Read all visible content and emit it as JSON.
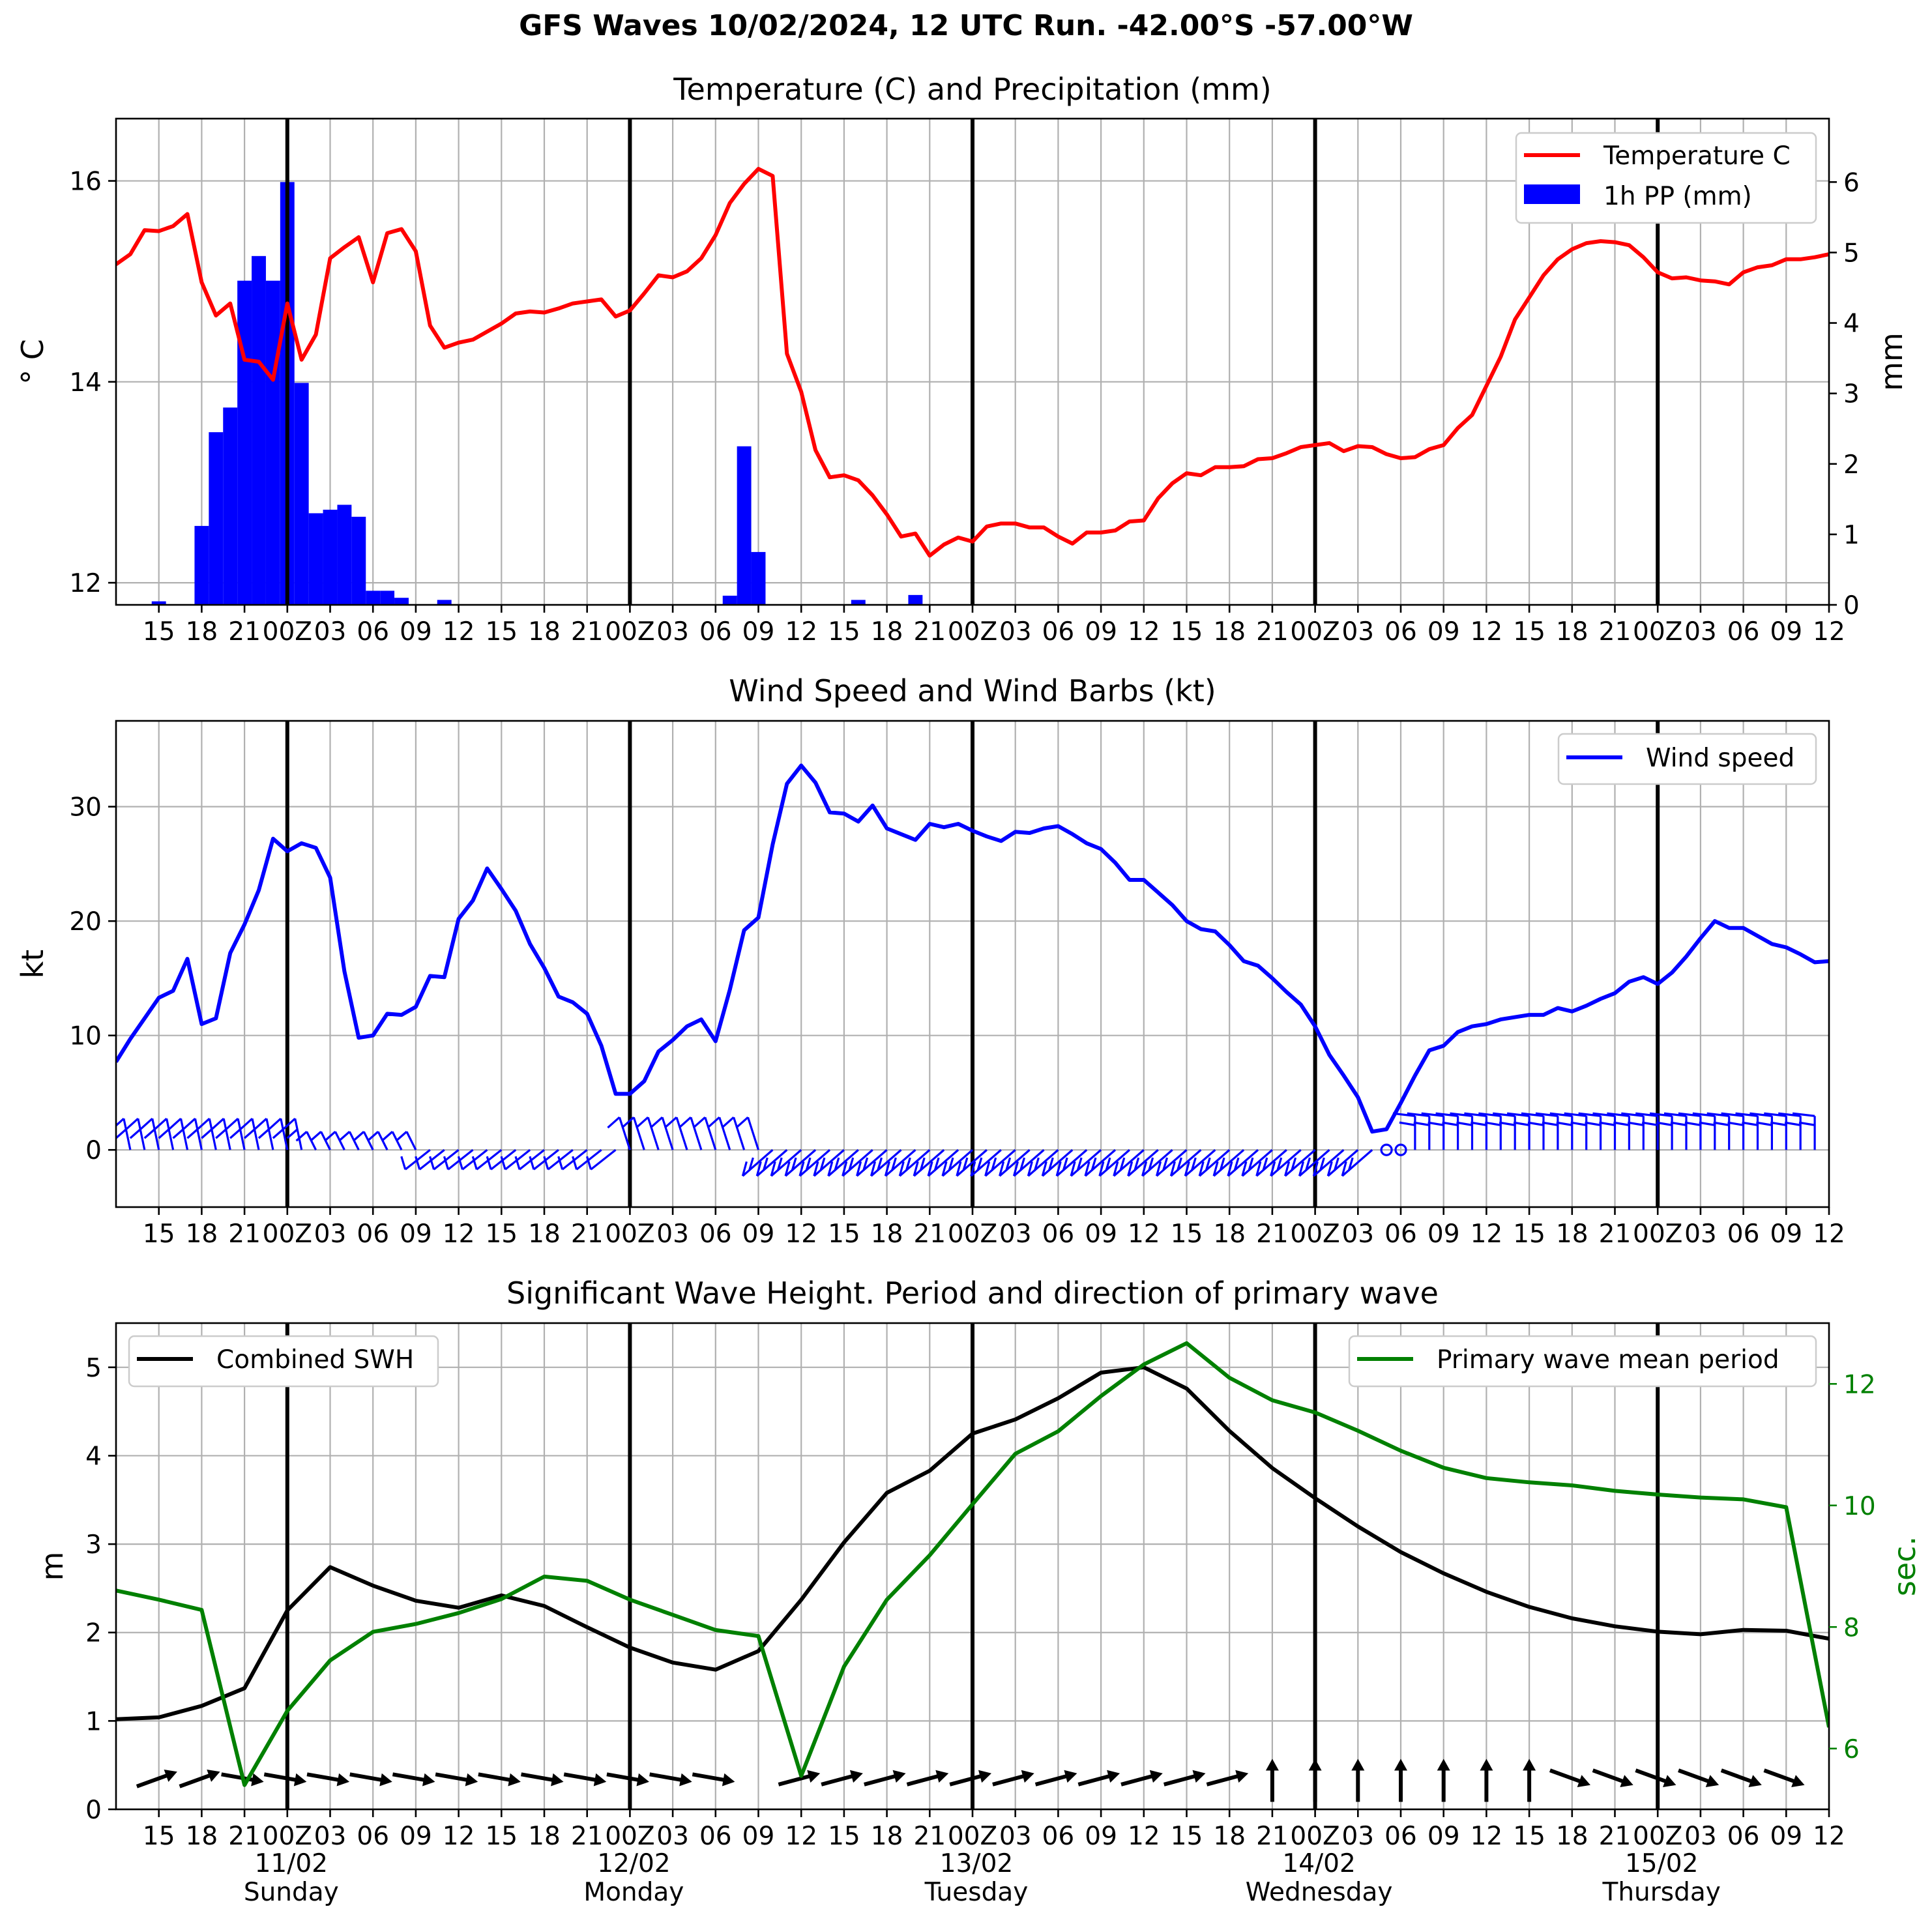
{
  "title": "GFS Waves 10/02/2024, 12 UTC Run. -42.00°S -57.00°W",
  "hour_tick_labels": [
    "15",
    "18",
    "21",
    "00Z",
    "03",
    "06",
    "09",
    "12",
    "15",
    "18",
    "21",
    "00Z",
    "03",
    "06",
    "09",
    "12",
    "15",
    "18",
    "21",
    "00Z",
    "03",
    "06",
    "09",
    "12",
    "15",
    "18",
    "21",
    "00Z",
    "03",
    "06",
    "09",
    "12",
    "15",
    "18",
    "21",
    "00Z",
    "03",
    "06",
    "09",
    "12"
  ],
  "day_labels": [
    {
      "date": "11/02",
      "day": "Sunday"
    },
    {
      "date": "12/02",
      "day": "Monday"
    },
    {
      "date": "13/02",
      "day": "Tuesday"
    },
    {
      "date": "14/02",
      "day": "Wednesday"
    },
    {
      "date": "15/02",
      "day": "Thursday"
    }
  ],
  "colors": {
    "temperature": "#ff0000",
    "precipitation": "#0000ff",
    "wind": "#0000ff",
    "swh": "#000000",
    "period": "#008000",
    "grid": "#b0b0b0"
  },
  "chart_data": [
    {
      "type": "line",
      "title": "Temperature (C) and Precipitation (mm)",
      "xlabel": "",
      "ylabel": "° C",
      "ylabel_right": "mm",
      "x_unit": "hours after 10/02/2024 12 UTC",
      "xlim": [
        0,
        120
      ],
      "ylim": [
        11.78,
        16.62
      ],
      "ylim_right": [
        0,
        6.9
      ],
      "yticks": [
        12,
        14,
        16
      ],
      "yticks_right": [
        0,
        1,
        2,
        3,
        4,
        5,
        6
      ],
      "legend_position": "top-right",
      "series": [
        {
          "name": "Temperature C",
          "axis": "left",
          "x": [
            0,
            1,
            2,
            3,
            4,
            5,
            6,
            7,
            8,
            9,
            10,
            11,
            12,
            13,
            14,
            15,
            16,
            17,
            18,
            19,
            20,
            21,
            22,
            23,
            24,
            25,
            26,
            27,
            28,
            29,
            30,
            31,
            32,
            33,
            34,
            35,
            36,
            37,
            38,
            39,
            40,
            41,
            42,
            43,
            44,
            45,
            46,
            47,
            48,
            49,
            50,
            51,
            52,
            53,
            54,
            55,
            56,
            57,
            58,
            59,
            60,
            61,
            62,
            63,
            64,
            65,
            66,
            67,
            68,
            69,
            70,
            71,
            72,
            73,
            74,
            75,
            76,
            77,
            78,
            79,
            80,
            81,
            82,
            83,
            84,
            85,
            86,
            87,
            88,
            89,
            90,
            91,
            92,
            93,
            94,
            95,
            96,
            97,
            98,
            99,
            100,
            101,
            102,
            103,
            104,
            105,
            106,
            107,
            108,
            109,
            110,
            111,
            112,
            113,
            114,
            115,
            116,
            117,
            118,
            119,
            120
          ],
          "values": [
            15.17,
            15.27,
            15.51,
            15.5,
            15.55,
            15.67,
            14.99,
            14.66,
            14.78,
            14.22,
            14.2,
            14.02,
            14.78,
            14.22,
            14.47,
            15.23,
            15.34,
            15.44,
            14.99,
            15.48,
            15.52,
            15.3,
            14.56,
            14.34,
            14.39,
            14.42,
            14.5,
            14.58,
            14.68,
            14.7,
            14.69,
            14.73,
            14.78,
            14.8,
            14.82,
            14.65,
            14.71,
            14.88,
            15.06,
            15.04,
            15.1,
            15.23,
            15.46,
            15.78,
            15.97,
            16.12,
            16.05,
            14.28,
            13.9,
            13.32,
            13.05,
            13.07,
            13.02,
            12.87,
            12.68,
            12.46,
            12.49,
            12.27,
            12.38,
            12.45,
            12.41,
            12.56,
            12.59,
            12.59,
            12.55,
            12.55,
            12.46,
            12.39,
            12.5,
            12.5,
            12.52,
            12.61,
            12.62,
            12.84,
            12.99,
            13.09,
            13.07,
            13.15,
            13.15,
            13.16,
            13.23,
            13.24,
            13.29,
            13.35,
            13.37,
            13.39,
            13.31,
            13.36,
            13.35,
            13.28,
            13.24,
            13.25,
            13.33,
            13.37,
            13.54,
            13.67,
            13.96,
            14.25,
            14.62,
            14.84,
            15.06,
            15.22,
            15.32,
            15.38,
            15.4,
            15.39,
            15.36,
            15.24,
            15.09,
            15.03,
            15.04,
            15.01,
            15.0,
            14.97,
            15.09,
            15.14,
            15.16,
            15.22,
            15.22,
            15.24,
            15.27
          ]
        },
        {
          "name": "1h PP (mm)",
          "type": "bar",
          "axis": "right",
          "x": [
            3,
            6,
            7,
            8,
            9,
            10,
            11,
            12,
            13,
            14,
            15,
            16,
            17,
            18,
            19,
            20,
            23,
            43,
            44,
            45,
            52,
            56
          ],
          "values": [
            0.05,
            1.12,
            2.45,
            2.8,
            4.6,
            4.95,
            4.6,
            6.0,
            3.15,
            1.3,
            1.35,
            1.42,
            1.25,
            0.2,
            0.2,
            0.1,
            0.07,
            0.13,
            2.25,
            0.75,
            0.07,
            0.14
          ]
        }
      ]
    },
    {
      "type": "line",
      "title": "Wind Speed and Wind Barbs (kt)",
      "xlabel": "",
      "ylabel": "kt",
      "x_unit": "hours after 10/02/2024 12 UTC",
      "xlim": [
        0,
        120
      ],
      "ylim": [
        -5,
        37.5
      ],
      "yticks": [
        0,
        10,
        20,
        30
      ],
      "legend_position": "top-right",
      "series": [
        {
          "name": "Wind speed",
          "x": [
            0,
            1,
            2,
            3,
            4,
            5,
            6,
            7,
            8,
            9,
            10,
            11,
            12,
            13,
            14,
            15,
            16,
            17,
            18,
            19,
            20,
            21,
            22,
            23,
            24,
            25,
            26,
            27,
            28,
            29,
            30,
            31,
            32,
            33,
            34,
            35,
            36,
            37,
            38,
            39,
            40,
            41,
            42,
            43,
            44,
            45,
            46,
            47,
            48,
            49,
            50,
            51,
            52,
            53,
            54,
            55,
            56,
            57,
            58,
            59,
            60,
            61,
            62,
            63,
            64,
            65,
            66,
            67,
            68,
            69,
            70,
            71,
            72,
            73,
            74,
            75,
            76,
            77,
            78,
            79,
            80,
            81,
            82,
            83,
            84,
            85,
            86,
            87,
            88,
            89,
            90,
            91,
            92,
            93,
            94,
            95,
            96,
            97,
            98,
            99,
            100,
            101,
            102,
            103,
            104,
            105,
            106,
            107,
            108,
            109,
            110,
            111,
            112,
            113,
            114,
            115,
            116,
            117,
            118,
            119,
            120
          ],
          "values": [
            7.7,
            9.7,
            11.5,
            13.3,
            13.9,
            16.7,
            11.0,
            11.5,
            17.2,
            19.7,
            22.7,
            27.2,
            26.1,
            26.8,
            26.4,
            23.8,
            15.6,
            9.8,
            10.0,
            11.9,
            11.8,
            12.5,
            15.2,
            15.1,
            20.2,
            21.8,
            24.6,
            22.8,
            20.9,
            18.0,
            15.9,
            13.4,
            12.9,
            11.9,
            9.1,
            4.9,
            4.9,
            6.0,
            8.6,
            9.6,
            10.8,
            11.4,
            9.5,
            14.0,
            19.2,
            20.3,
            26.7,
            32.0,
            33.6,
            32.1,
            29.5,
            29.4,
            28.7,
            30.1,
            28.1,
            27.6,
            27.1,
            28.5,
            28.2,
            28.5,
            27.9,
            27.4,
            27.0,
            27.8,
            27.7,
            28.1,
            28.3,
            27.6,
            26.8,
            26.3,
            25.1,
            23.6,
            23.6,
            22.5,
            21.4,
            20.0,
            19.3,
            19.1,
            17.9,
            16.5,
            16.1,
            15.0,
            13.8,
            12.7,
            10.8,
            8.3,
            6.5,
            4.6,
            1.6,
            1.8,
            4.1,
            6.5,
            8.7,
            9.1,
            10.3,
            10.8,
            11.0,
            11.4,
            11.6,
            11.8,
            11.8,
            12.4,
            12.1,
            12.6,
            13.2,
            13.7,
            14.7,
            15.1,
            14.5,
            15.5,
            16.9,
            18.5,
            20.0,
            19.4,
            19.4,
            18.7,
            18.0,
            17.7,
            17.1,
            16.4,
            16.5
          ]
        }
      ]
    },
    {
      "type": "line",
      "title": "Significant Wave Height. Period and direction of primary wave",
      "xlabel": "",
      "ylabel": "m",
      "ylabel_right": "sec.",
      "x_unit": "hours after 10/02/2024 12 UTC",
      "xlim": [
        0,
        120
      ],
      "ylim": [
        0,
        5.5
      ],
      "ylim_right": [
        5.0,
        13.0
      ],
      "yticks": [
        0,
        1,
        2,
        3,
        4,
        5
      ],
      "yticks_right": [
        6,
        8,
        10,
        12
      ],
      "legend_positions": {
        "Combined SWH": "top-left",
        "Primary wave mean period": "top-right"
      },
      "series": [
        {
          "name": "Combined SWH",
          "axis": "left",
          "x": [
            0,
            3,
            6,
            9,
            12,
            15,
            18,
            21,
            24,
            27,
            30,
            33,
            36,
            39,
            42,
            45,
            48,
            51,
            54,
            57,
            60,
            63,
            66,
            69,
            72,
            75,
            78,
            81,
            84,
            87,
            90,
            93,
            96,
            99,
            102,
            105,
            108,
            111,
            114,
            117,
            120
          ],
          "values": [
            1.02,
            1.04,
            1.17,
            1.37,
            2.25,
            2.74,
            2.53,
            2.36,
            2.28,
            2.42,
            2.3,
            2.06,
            1.83,
            1.66,
            1.58,
            1.79,
            2.37,
            3.02,
            3.58,
            3.83,
            4.25,
            4.41,
            4.65,
            4.94,
            5.0,
            4.76,
            4.28,
            3.86,
            3.52,
            3.2,
            2.91,
            2.67,
            2.46,
            2.29,
            2.16,
            2.07,
            2.01,
            1.98,
            2.03,
            2.02,
            1.93
          ]
        },
        {
          "name": "Primary wave mean period",
          "axis": "right",
          "x": [
            0,
            3,
            6,
            9,
            12,
            15,
            18,
            21,
            24,
            27,
            30,
            33,
            36,
            39,
            42,
            45,
            48,
            51,
            54,
            57,
            60,
            63,
            66,
            69,
            72,
            75,
            78,
            81,
            84,
            87,
            90,
            93,
            96,
            99,
            102,
            105,
            108,
            111,
            114,
            117,
            120
          ],
          "values": [
            8.6,
            8.45,
            8.28,
            5.4,
            6.62,
            7.45,
            7.92,
            8.05,
            8.23,
            8.46,
            8.83,
            8.76,
            8.45,
            8.2,
            7.95,
            7.85,
            5.55,
            7.35,
            8.45,
            9.18,
            10.02,
            10.85,
            11.22,
            11.8,
            12.32,
            12.67,
            12.1,
            11.73,
            11.53,
            11.23,
            10.9,
            10.62,
            10.45,
            10.38,
            10.33,
            10.24,
            10.18,
            10.13,
            10.1,
            9.97,
            6.35
          ]
        }
      ]
    }
  ]
}
